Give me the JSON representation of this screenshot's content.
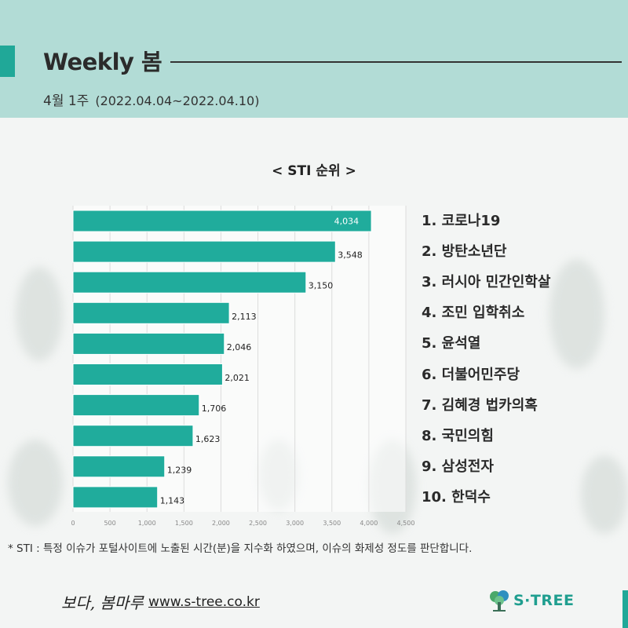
{
  "header": {
    "title": "Weekly 봄",
    "week": "4월 1주",
    "date_range": "(2022.04.04~2022.04.10)"
  },
  "colors": {
    "header_bg": "#b2dcd6",
    "accent": "#20a898",
    "bar": "#20ac9c"
  },
  "chart_data": {
    "type": "bar",
    "orientation": "horizontal",
    "title": "< STI 순위 >",
    "categories": [
      "코로나19",
      "방탄소년단",
      "러시아 민간인학살",
      "조민 입학취소",
      "윤석열",
      "더불어민주당",
      "김혜경 법카의혹",
      "국민의힘",
      "삼성전자",
      "한덕수"
    ],
    "values": [
      4034,
      3548,
      3150,
      2113,
      2046,
      2021,
      1706,
      1623,
      1239,
      1143
    ],
    "value_labels": [
      "4,034",
      "3,548",
      "3,150",
      "2,113",
      "2,046",
      "2,021",
      "1,706",
      "1,623",
      "1,239",
      "1,143"
    ],
    "xlim": [
      0,
      4500
    ],
    "x_ticks": [
      "0",
      "500",
      "1,000",
      "1,500",
      "2,000",
      "2,500",
      "3,000",
      "3,500",
      "4,000",
      "4,500"
    ],
    "grid": true
  },
  "ranking": [
    {
      "num": "1.",
      "name": "코로나19"
    },
    {
      "num": "2.",
      "name": "방탄소년단"
    },
    {
      "num": "3.",
      "name": "러시아 민간인학살"
    },
    {
      "num": "4.",
      "name": "조민 입학취소"
    },
    {
      "num": "5.",
      "name": "윤석열"
    },
    {
      "num": "6.",
      "name": "더불어민주당"
    },
    {
      "num": "7.",
      "name": "김혜경 법카의혹"
    },
    {
      "num": "8.",
      "name": "국민의힘"
    },
    {
      "num": "9.",
      "name": "삼성전자"
    },
    {
      "num": "10.",
      "name": "한덕수"
    }
  ],
  "footnote": "* STI : 특정 이슈가 포털사이트에 노출된 시간(분)을 지수화 하였으며, 이슈의 화제성 정도를 판단합니다.",
  "footer": {
    "logo_text": "보다, 봄마루",
    "url": "www.s-tree.co.kr",
    "brand": "S·TREE",
    "brand_icon": "tree-icon"
  }
}
